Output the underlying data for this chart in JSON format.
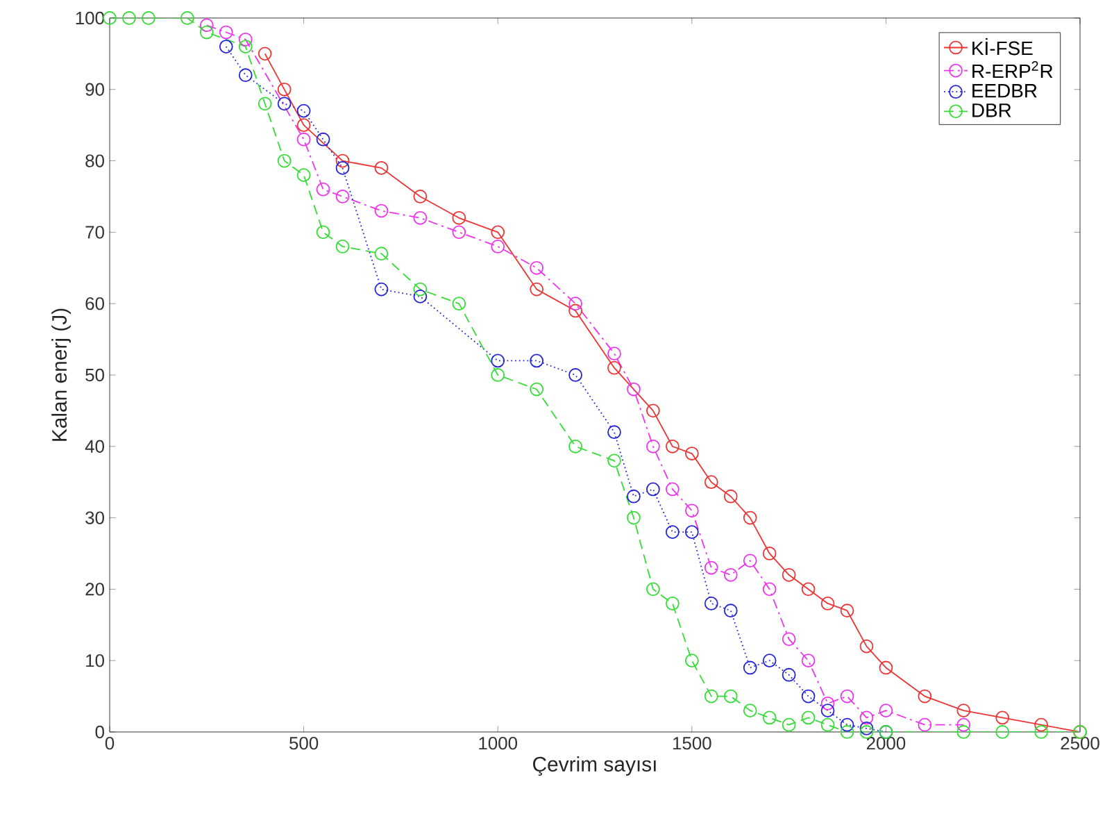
{
  "chart_data": {
    "type": "line",
    "xlabel": "Çevrim sayısı",
    "ylabel": "Kalan enerj (J)",
    "xlim": [
      0,
      2500
    ],
    "ylim": [
      0,
      100
    ],
    "xticks": [
      0,
      500,
      1000,
      1500,
      2000,
      2500
    ],
    "yticks": [
      0,
      10,
      20,
      30,
      40,
      50,
      60,
      70,
      80,
      90,
      100
    ],
    "grid": false,
    "legend": "top right",
    "marker": "circle",
    "series": [
      {
        "name": "Kİ-FSE",
        "color": "#ee3333",
        "line_style": "solid",
        "x": [
          400,
          450,
          500,
          600,
          700,
          800,
          900,
          1000,
          1100,
          1200,
          1300,
          1400,
          1450,
          1500,
          1550,
          1600,
          1650,
          1700,
          1750,
          1800,
          1850,
          1900,
          1950,
          2000,
          2100,
          2200,
          2300,
          2400,
          2500
        ],
        "values": [
          95,
          90,
          85,
          80,
          79,
          75,
          72,
          70,
          62,
          59,
          51,
          45,
          40,
          39,
          35,
          33,
          30,
          25,
          22,
          20,
          18,
          17,
          12,
          9,
          5,
          3,
          2,
          1,
          0
        ]
      },
      {
        "name": "R-ERP$^{2}$R",
        "color": "#ee33ee",
        "line_style": "dashdot",
        "x": [
          250,
          300,
          350,
          500,
          550,
          600,
          700,
          800,
          900,
          1000,
          1100,
          1200,
          1300,
          1350,
          1400,
          1450,
          1500,
          1550,
          1600,
          1650,
          1700,
          1750,
          1800,
          1850,
          1900,
          1950,
          2000,
          2100,
          2200
        ],
        "values": [
          99,
          98,
          97,
          83,
          76,
          75,
          73,
          72,
          70,
          68,
          65,
          60,
          53,
          48,
          40,
          34,
          31,
          23,
          22,
          24,
          20,
          13,
          10,
          4,
          5,
          2,
          3,
          1,
          1
        ]
      },
      {
        "name": "EEDBR",
        "color": "#2222dd",
        "line_style": "dotted",
        "x": [
          300,
          350,
          450,
          500,
          550,
          600,
          700,
          800,
          1000,
          1100,
          1200,
          1300,
          1350,
          1400,
          1450,
          1500,
          1550,
          1600,
          1650,
          1700,
          1750,
          1800,
          1850,
          1900,
          1950,
          2000
        ],
        "values": [
          96,
          92,
          88,
          87,
          83,
          79,
          62,
          61,
          52,
          52,
          50,
          42,
          33,
          34,
          28,
          28,
          18,
          17,
          9,
          10,
          8,
          5,
          3,
          1,
          0.5,
          0
        ]
      },
      {
        "name": "DBR",
        "color": "#33dd33",
        "line_style": "dashed",
        "x": [
          0,
          50,
          100,
          200,
          250,
          350,
          400,
          450,
          500,
          550,
          600,
          700,
          800,
          900,
          1000,
          1100,
          1200,
          1300,
          1350,
          1400,
          1450,
          1500,
          1550,
          1600,
          1650,
          1700,
          1750,
          1800,
          1850,
          1900,
          1950,
          2000,
          2200,
          2300,
          2400,
          2500
        ],
        "values": [
          100,
          100,
          100,
          100,
          98,
          96,
          88,
          80,
          78,
          70,
          68,
          67,
          62,
          60,
          50,
          48,
          40,
          38,
          30,
          20,
          18,
          10,
          5,
          5,
          3,
          2,
          1,
          2,
          1,
          0,
          0,
          0,
          0,
          0,
          0,
          0
        ]
      }
    ]
  }
}
